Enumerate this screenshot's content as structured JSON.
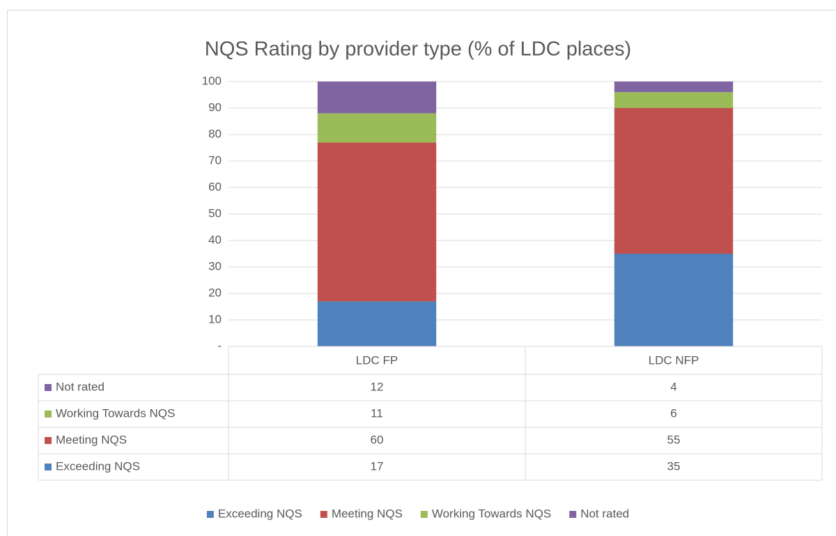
{
  "chart_data": {
    "type": "stacked_bar",
    "title": "NQS Rating  by provider type (% of LDC places)",
    "categories": [
      "LDC FP",
      "LDC NFP"
    ],
    "series": [
      {
        "name": "Exceeding NQS",
        "color": "#4f81bd",
        "values": [
          17,
          35
        ]
      },
      {
        "name": "Meeting NQS",
        "color": "#c0504d",
        "values": [
          60,
          55
        ]
      },
      {
        "name": "Working Towards NQS",
        "color": "#9bbb59",
        "values": [
          11,
          6
        ]
      },
      {
        "name": "Not rated",
        "color": "#8064a2",
        "values": [
          12,
          4
        ]
      }
    ],
    "ylim": [
      0,
      100
    ],
    "yticks": [
      {
        "value": 0,
        "label": "-"
      },
      10,
      20,
      30,
      40,
      50,
      60,
      70,
      80,
      90,
      100
    ],
    "grid": true,
    "legend": "bottom",
    "data_table": true
  }
}
